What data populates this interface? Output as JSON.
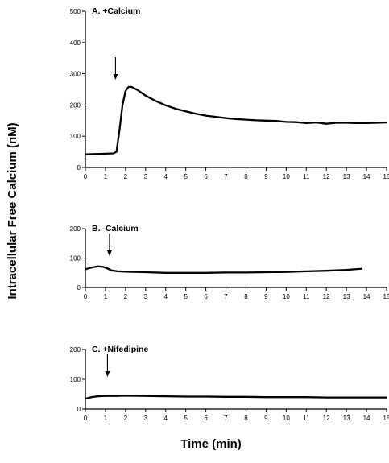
{
  "chart_data": {
    "ylabel": "Intracellular  Free  Calcium  (nM)",
    "xlabel": "Time  (min)",
    "panels": [
      {
        "type": "line",
        "title": "A.  +Calcium",
        "xlim": [
          0,
          15
        ],
        "ylim": [
          0,
          500
        ],
        "xticks": [
          0,
          1,
          2,
          3,
          4,
          5,
          6,
          7,
          8,
          9,
          10,
          11,
          12,
          13,
          14,
          15
        ],
        "yticks": [
          0,
          100,
          200,
          300,
          400,
          500
        ],
        "arrow_at": 1.5,
        "series": [
          {
            "x": [
              0,
              0.5,
              1.0,
              1.4,
              1.55,
              1.7,
              1.85,
              2.0,
              2.15,
              2.3,
              2.6,
              3.0,
              3.5,
              4.0,
              4.5,
              5.0,
              5.5,
              6.0,
              6.5,
              7.0,
              7.5,
              8.0,
              8.5,
              9.0,
              9.5,
              10.0,
              10.5,
              11.0,
              11.5,
              12.0,
              12.5,
              13.0,
              13.5,
              14.0,
              14.5,
              15.0
            ],
            "y": [
              42,
              43,
              44,
              45,
              50,
              120,
              200,
              245,
              258,
              258,
              248,
              230,
              213,
              199,
              188,
              180,
              172,
              166,
              162,
              158,
              155,
              153,
              151,
              150,
              149,
              146,
              145,
              142,
              144,
              140,
              143,
              143,
              142,
              142,
              143,
              144
            ]
          }
        ]
      },
      {
        "type": "line",
        "title": "B.   -Calcium",
        "xlim": [
          0,
          15
        ],
        "ylim": [
          0,
          200
        ],
        "xticks": [
          0,
          1,
          2,
          3,
          4,
          5,
          6,
          7,
          8,
          9,
          10,
          11,
          12,
          13,
          14,
          15
        ],
        "yticks": [
          0,
          100,
          200
        ],
        "arrow_at": 1.2,
        "series": [
          {
            "x": [
              0,
              0.3,
              0.6,
              0.9,
              1.1,
              1.3,
              1.6,
              2.0,
              3.0,
              4.0,
              5.0,
              6.0,
              7.0,
              8.0,
              9.0,
              10.0,
              11.0,
              12.0,
              13.0,
              13.8
            ],
            "y": [
              62,
              68,
              72,
              70,
              65,
              58,
              55,
              54,
              52,
              50,
              50,
              50,
              51,
              51,
              52,
              53,
              55,
              57,
              60,
              64
            ]
          }
        ]
      },
      {
        "type": "line",
        "title": "C.   +Nifedipine",
        "xlim": [
          0,
          15
        ],
        "ylim": [
          0,
          200
        ],
        "xticks": [
          0,
          1,
          2,
          3,
          4,
          5,
          6,
          7,
          8,
          9,
          10,
          11,
          12,
          13,
          14,
          15
        ],
        "yticks": [
          0,
          100,
          200
        ],
        "arrow_at": 1.1,
        "series": [
          {
            "x": [
              0,
              0.3,
              0.6,
              1.0,
              1.5,
              2.0,
              3.0,
              4.0,
              5.0,
              6.0,
              7.0,
              8.0,
              9.0,
              10.0,
              11.0,
              12.0,
              13.0,
              14.0,
              15.0
            ],
            "y": [
              35,
              40,
              43,
              44,
              44,
              45,
              44,
              43,
              42,
              42,
              41,
              41,
              40,
              40,
              40,
              39,
              39,
              39,
              39
            ]
          }
        ]
      }
    ]
  }
}
